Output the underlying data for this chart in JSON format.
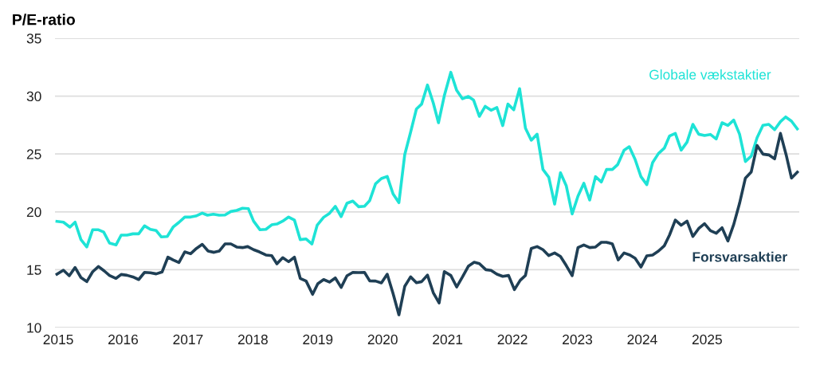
{
  "chart_data": {
    "type": "line",
    "ylabel": "P/E-ratio",
    "xlim": [
      2014.95,
      2026.42
    ],
    "ylim": [
      10,
      35
    ],
    "xticks": [
      2015,
      2016,
      2017,
      2018,
      2019,
      2020,
      2021,
      2022,
      2023,
      2024,
      2025
    ],
    "yticks": [
      10,
      15,
      20,
      25,
      30,
      35
    ],
    "grid": "y",
    "legend": false,
    "marker": "none",
    "line_style": "solid",
    "series": [
      {
        "name": "Globale vækstaktier",
        "color": "#1ee3d6",
        "x": [
          2014.98,
          2015.08,
          2015.18,
          2015.26,
          2015.35,
          2015.44,
          2015.53,
          2015.62,
          2015.7,
          2015.79,
          2015.89,
          2015.97,
          2016.06,
          2016.15,
          2016.24,
          2016.33,
          2016.42,
          2016.51,
          2016.59,
          2016.68,
          2016.77,
          2016.86,
          2016.95,
          2017.04,
          2017.12,
          2017.22,
          2017.3,
          2017.39,
          2017.48,
          2017.57,
          2017.66,
          2017.75,
          2017.84,
          2017.93,
          2018.01,
          2018.11,
          2018.2,
          2018.29,
          2018.37,
          2018.46,
          2018.55,
          2018.64,
          2018.73,
          2018.82,
          2018.91,
          2018.99,
          2019.09,
          2019.18,
          2019.27,
          2019.36,
          2019.45,
          2019.54,
          2019.63,
          2019.72,
          2019.8,
          2019.89,
          2019.98,
          2020.07,
          2020.16,
          2020.25,
          2020.34,
          2020.43,
          2020.52,
          2020.6,
          2020.69,
          2020.78,
          2020.86,
          2020.95,
          2021.05,
          2021.14,
          2021.23,
          2021.32,
          2021.4,
          2021.49,
          2021.58,
          2021.67,
          2021.76,
          2021.85,
          2021.93,
          2022.02,
          2022.11,
          2022.2,
          2022.29,
          2022.38,
          2022.47,
          2022.56,
          2022.65,
          2022.74,
          2022.83,
          2022.92,
          2023.01,
          2023.1,
          2023.19,
          2023.28,
          2023.37,
          2023.45,
          2023.54,
          2023.62,
          2023.72,
          2023.8,
          2023.89,
          2023.98,
          2024.07,
          2024.16,
          2024.25,
          2024.34,
          2024.42,
          2024.51,
          2024.6,
          2024.69,
          2024.78,
          2024.87,
          2024.96,
          2025.05,
          2025.14,
          2025.23,
          2025.32,
          2025.41,
          2025.5,
          2025.59,
          2025.68,
          2025.77,
          2025.86,
          2025.95,
          2026.04,
          2026.13,
          2026.21,
          2026.3,
          2026.39
        ],
        "values": [
          19.18,
          19.11,
          18.68,
          19.11,
          17.6,
          16.96,
          18.45,
          18.45,
          18.26,
          17.3,
          17.14,
          17.99,
          17.99,
          18.1,
          18.1,
          18.79,
          18.49,
          18.38,
          17.83,
          17.87,
          18.68,
          19.09,
          19.55,
          19.55,
          19.64,
          19.89,
          19.71,
          19.8,
          19.71,
          19.73,
          20.03,
          20.12,
          20.31,
          20.28,
          19.2,
          18.45,
          18.49,
          18.88,
          18.95,
          19.2,
          19.55,
          19.29,
          17.6,
          17.66,
          17.23,
          18.84,
          19.53,
          19.87,
          20.47,
          19.59,
          20.74,
          20.93,
          20.44,
          20.49,
          20.97,
          22.42,
          22.88,
          23.06,
          21.55,
          20.79,
          24.95,
          26.87,
          28.89,
          29.31,
          30.96,
          29.4,
          27.7,
          30.04,
          32.06,
          30.5,
          29.77,
          29.97,
          29.67,
          28.25,
          29.12,
          28.78,
          29.01,
          27.45,
          29.31,
          28.82,
          30.64,
          27.24,
          26.19,
          26.71,
          23.66,
          22.99,
          20.67,
          23.38,
          22.24,
          19.82,
          21.36,
          22.47,
          21.02,
          23.04,
          22.58,
          23.66,
          23.66,
          24.07,
          25.33,
          25.63,
          24.53,
          23.04,
          22.35,
          24.26,
          25.04,
          25.5,
          26.55,
          26.78,
          25.33,
          26.02,
          27.56,
          26.71,
          26.6,
          26.69,
          26.3,
          27.7,
          27.47,
          27.93,
          26.71,
          24.35,
          24.81,
          26.41,
          27.47,
          27.56,
          27.1,
          27.79,
          28.2,
          27.84,
          27.17
        ]
      },
      {
        "name": "Forsvarsaktier",
        "color": "#1f3f55",
        "x": [
          2014.98,
          2015.08,
          2015.17,
          2015.26,
          2015.35,
          2015.44,
          2015.53,
          2015.62,
          2015.71,
          2015.79,
          2015.89,
          2015.97,
          2016.06,
          2016.15,
          2016.24,
          2016.33,
          2016.42,
          2016.51,
          2016.6,
          2016.69,
          2016.77,
          2016.86,
          2016.95,
          2017.04,
          2017.13,
          2017.22,
          2017.31,
          2017.4,
          2017.48,
          2017.57,
          2017.66,
          2017.75,
          2017.84,
          2017.92,
          2018.01,
          2018.1,
          2018.2,
          2018.29,
          2018.37,
          2018.46,
          2018.55,
          2018.64,
          2018.73,
          2018.82,
          2018.92,
          2019.0,
          2019.09,
          2019.18,
          2019.27,
          2019.36,
          2019.45,
          2019.54,
          2019.63,
          2019.72,
          2019.8,
          2019.89,
          2019.98,
          2020.07,
          2020.16,
          2020.25,
          2020.34,
          2020.43,
          2020.52,
          2020.6,
          2020.69,
          2020.78,
          2020.87,
          2020.95,
          2021.05,
          2021.14,
          2021.23,
          2021.32,
          2021.41,
          2021.49,
          2021.59,
          2021.67,
          2021.76,
          2021.85,
          2021.94,
          2022.03,
          2022.12,
          2022.2,
          2022.29,
          2022.38,
          2022.47,
          2022.56,
          2022.65,
          2022.74,
          2022.83,
          2022.92,
          2023.01,
          2023.1,
          2023.19,
          2023.28,
          2023.37,
          2023.45,
          2023.54,
          2023.63,
          2023.72,
          2023.81,
          2023.89,
          2023.98,
          2024.07,
          2024.16,
          2024.25,
          2024.34,
          2024.42,
          2024.51,
          2024.6,
          2024.69,
          2024.78,
          2024.87,
          2024.96,
          2025.05,
          2025.14,
          2025.23,
          2025.32,
          2025.41,
          2025.5,
          2025.59,
          2025.68,
          2025.77,
          2025.86,
          2025.95,
          2026.04,
          2026.13,
          2026.22,
          2026.3,
          2026.39
        ],
        "values": [
          14.61,
          14.96,
          14.48,
          15.19,
          14.32,
          13.97,
          14.82,
          15.28,
          14.89,
          14.5,
          14.25,
          14.59,
          14.52,
          14.38,
          14.15,
          14.77,
          14.73,
          14.64,
          14.8,
          16.08,
          15.85,
          15.62,
          16.54,
          16.38,
          16.84,
          17.19,
          16.61,
          16.5,
          16.61,
          17.23,
          17.23,
          16.96,
          16.91,
          17.0,
          16.73,
          16.54,
          16.27,
          16.22,
          15.51,
          16.04,
          15.69,
          16.08,
          14.25,
          14.02,
          12.87,
          13.79,
          14.15,
          13.93,
          14.29,
          13.47,
          14.48,
          14.77,
          14.75,
          14.77,
          14.04,
          14.02,
          13.86,
          14.61,
          12.94,
          11.1,
          13.56,
          14.38,
          13.88,
          13.97,
          14.54,
          13.01,
          12.13,
          14.84,
          14.5,
          13.51,
          14.38,
          15.3,
          15.65,
          15.53,
          15.0,
          14.94,
          14.61,
          14.43,
          14.5,
          13.28,
          14.09,
          14.5,
          16.84,
          17.0,
          16.73,
          16.22,
          16.45,
          16.15,
          15.35,
          14.48,
          16.91,
          17.14,
          16.91,
          16.96,
          17.37,
          17.37,
          17.23,
          15.85,
          16.45,
          16.27,
          15.99,
          15.23,
          16.2,
          16.27,
          16.61,
          17.07,
          17.99,
          19.29,
          18.84,
          19.2,
          17.87,
          18.56,
          18.98,
          18.38,
          18.15,
          18.63,
          17.48,
          18.91,
          20.74,
          22.92,
          23.45,
          25.73,
          24.99,
          24.92,
          24.58,
          26.78,
          24.88,
          22.92,
          23.43
        ]
      }
    ]
  }
}
